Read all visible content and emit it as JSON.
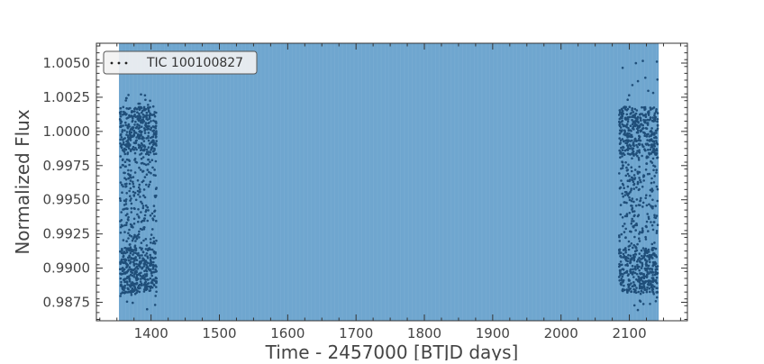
{
  "chart_data": {
    "type": "scatter",
    "title": "",
    "xlabel": "Time - 2457000 [BTJD days]",
    "ylabel": "Normalized Flux",
    "xlim": [
      1320,
      2185
    ],
    "ylim": [
      0.98615,
      1.00645
    ],
    "x_ticks": [
      "1400",
      "1500",
      "1600",
      "1700",
      "1800",
      "1900",
      "2000",
      "2100"
    ],
    "y_ticks": [
      "0.9875",
      "0.9900",
      "0.9925",
      "0.9950",
      "0.9975",
      "1.0000",
      "1.0025",
      "1.0050"
    ],
    "grid": false,
    "legend_position": "top-left",
    "series": [
      {
        "name": "TIC 100100827",
        "marker": "dot",
        "color": "#1f4e79",
        "segments": [
          {
            "x_range": [
              1354.5,
              1408.0
            ],
            "flux_band_high": [
              0.9983,
              1.0018
            ],
            "flux_band_low": [
              0.9882,
              0.9915
            ],
            "flux_min": 0.9868,
            "flux_max": 1.0028
          },
          {
            "x_range": [
              2085.0,
              2141.5
            ],
            "flux_band_high": [
              0.9983,
              1.0018
            ],
            "flux_band_low": [
              0.9882,
              0.9915
            ],
            "flux_min": 0.9868,
            "flux_max": 1.0054
          }
        ]
      }
    ],
    "shaded_region": {
      "x_range": [
        1353.0,
        2143.0
      ],
      "color": "#5b9ac8"
    }
  }
}
